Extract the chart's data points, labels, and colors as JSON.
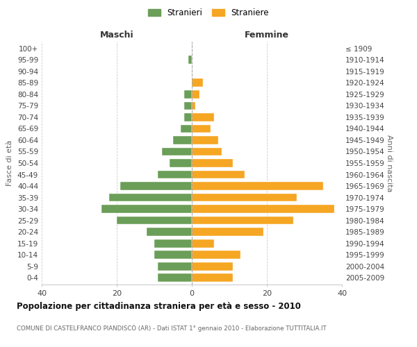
{
  "age_groups": [
    "0-4",
    "5-9",
    "10-14",
    "15-19",
    "20-24",
    "25-29",
    "30-34",
    "35-39",
    "40-44",
    "45-49",
    "50-54",
    "55-59",
    "60-64",
    "65-69",
    "70-74",
    "75-79",
    "80-84",
    "85-89",
    "90-94",
    "95-99",
    "100+"
  ],
  "birth_years": [
    "2005-2009",
    "2000-2004",
    "1995-1999",
    "1990-1994",
    "1985-1989",
    "1980-1984",
    "1975-1979",
    "1970-1974",
    "1965-1969",
    "1960-1964",
    "1955-1959",
    "1950-1954",
    "1945-1949",
    "1940-1944",
    "1935-1939",
    "1930-1934",
    "1925-1929",
    "1920-1924",
    "1915-1919",
    "1910-1914",
    "≤ 1909"
  ],
  "males": [
    9,
    9,
    10,
    10,
    12,
    20,
    24,
    22,
    19,
    9,
    6,
    8,
    5,
    3,
    2,
    2,
    2,
    0,
    0,
    1,
    0
  ],
  "females": [
    11,
    11,
    13,
    6,
    19,
    27,
    38,
    28,
    35,
    14,
    11,
    8,
    7,
    5,
    6,
    1,
    2,
    3,
    0,
    0,
    0
  ],
  "male_color": "#6b9e58",
  "female_color": "#f5a623",
  "background_color": "#ffffff",
  "grid_color": "#cccccc",
  "title": "Popolazione per cittadinanza straniera per età e sesso - 2010",
  "subtitle": "COMUNE DI CASTELFRANCO PIANDISCÒ (AR) - Dati ISTAT 1° gennaio 2010 - Elaborazione TUTTITALIA.IT",
  "xlabel_left": "Maschi",
  "xlabel_right": "Femmine",
  "ylabel_left": "Fasce di età",
  "ylabel_right": "Anni di nascita",
  "xlim": 40,
  "legend_stranieri": "Stranieri",
  "legend_straniere": "Straniere"
}
